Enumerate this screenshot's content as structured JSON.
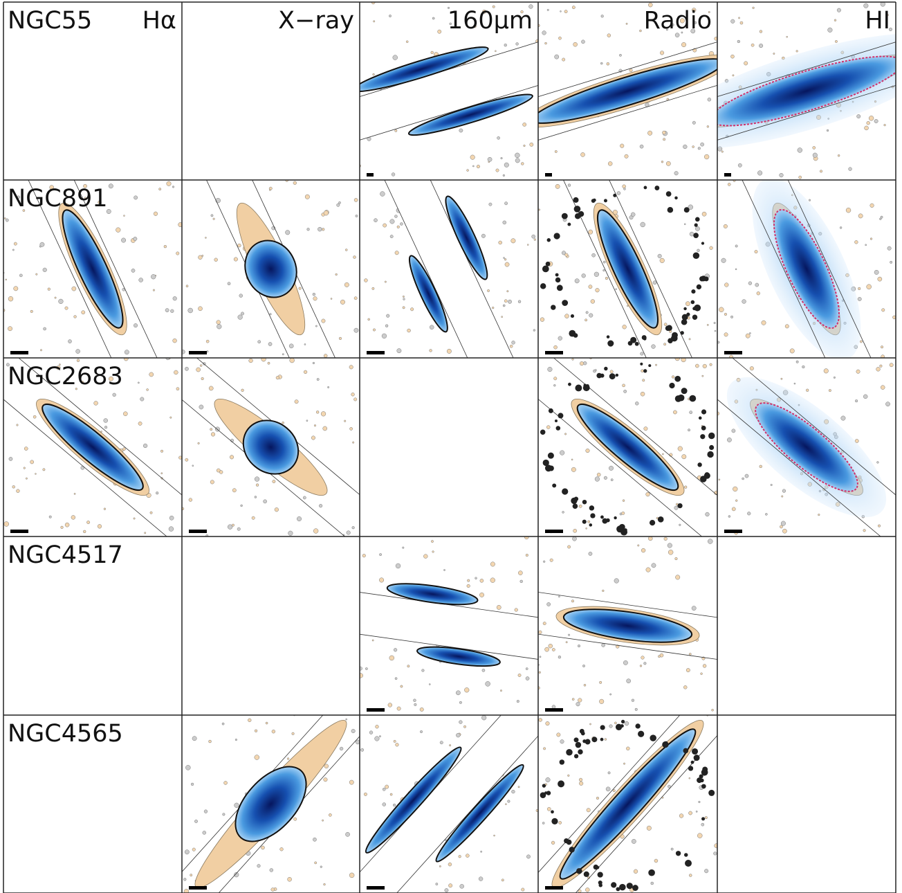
{
  "columns": [
    "Hα",
    "X−ray",
    "160μm",
    "Radio",
    "HI"
  ],
  "rows": [
    "NGC55",
    "NGC891",
    "NGC2683",
    "NGC4517",
    "NGC4565"
  ]
}
